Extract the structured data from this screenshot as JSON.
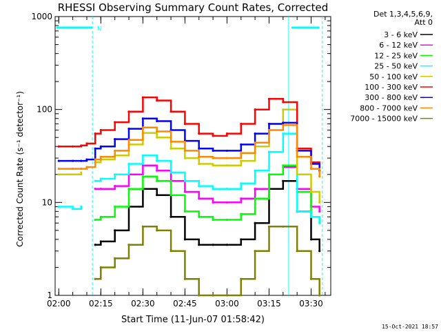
{
  "chart_data": {
    "type": "line",
    "title": "RHESSI Observing Summary Count Rates, Corrected",
    "xlabel": "Start Time (11-Jun-07 01:58:42)",
    "ylabel": "Corrected Count Rate (s⁻¹ detector⁻¹)",
    "y_scale": "log",
    "ylim": [
      1,
      1000
    ],
    "xlim": [
      "01:58:42",
      "03:37:00"
    ],
    "x_ticks": [
      "02:00",
      "02:15",
      "02:30",
      "02:45",
      "03:00",
      "03:15",
      "03:30"
    ],
    "y_ticks": [
      "1",
      "10",
      "100",
      "1000"
    ],
    "legend_header": [
      "Det 1,3,4,5,6,9,",
      "Att 0"
    ],
    "legend_placement": "right",
    "annotation": "N",
    "series": [
      {
        "name": "3 - 6 keV",
        "color": "#000000",
        "x": [
          "02:05",
          "02:08",
          "02:10",
          "02:13",
          "02:15",
          "02:20",
          "02:25",
          "02:30",
          "02:35",
          "02:40",
          "02:45",
          "02:50",
          "02:55",
          "03:00",
          "03:05",
          "03:10",
          "03:15",
          "03:20",
          "03:25",
          "03:30",
          "03:33"
        ],
        "y": [
          null,
          null,
          null,
          3.5,
          3.8,
          5,
          9,
          14,
          12,
          7,
          4,
          3.5,
          3.5,
          3.5,
          4,
          6,
          14,
          17,
          8,
          4,
          3
        ]
      },
      {
        "name": "6 - 12 keV",
        "color": "#ff00ff",
        "x": [
          "02:05",
          "02:08",
          "02:10",
          "02:13",
          "02:15",
          "02:20",
          "02:25",
          "02:30",
          "02:35",
          "02:40",
          "02:45",
          "02:50",
          "02:55",
          "03:00",
          "03:05",
          "03:10",
          "03:15",
          "03:20",
          "03:25",
          "03:30",
          "03:33"
        ],
        "y": [
          null,
          null,
          null,
          14,
          14,
          15,
          20,
          25,
          22,
          17,
          13,
          11,
          10,
          10,
          11,
          14,
          20,
          24,
          14,
          9,
          8
        ]
      },
      {
        "name": "12 - 25 keV",
        "color": "#00ff00",
        "x": [
          "02:05",
          "02:08",
          "02:10",
          "02:13",
          "02:15",
          "02:20",
          "02:25",
          "02:30",
          "02:35",
          "02:40",
          "02:45",
          "02:50",
          "02:55",
          "03:00",
          "03:05",
          "03:10",
          "03:15",
          "03:20",
          "03:25",
          "03:30",
          "03:33"
        ],
        "y": [
          null,
          null,
          null,
          6.5,
          7,
          9,
          14,
          19,
          17,
          12,
          8,
          7,
          6.5,
          6.5,
          7.5,
          11,
          20,
          25,
          13,
          7,
          6
        ]
      },
      {
        "name": "25 - 50 keV",
        "color": "#00ffff",
        "x": [
          "02:00",
          "02:05",
          "02:08",
          "02:10",
          "02:13",
          "02:15",
          "02:20",
          "02:25",
          "02:30",
          "02:35",
          "02:40",
          "02:45",
          "02:50",
          "02:55",
          "03:00",
          "03:05",
          "03:10",
          "03:15",
          "03:20",
          "03:25",
          "03:30",
          "03:33"
        ],
        "y": [
          9,
          8.5,
          9,
          null,
          17,
          18,
          20,
          26,
          32,
          28,
          21,
          17,
          15,
          14,
          14,
          16,
          22,
          35,
          55,
          8,
          7,
          6
        ]
      },
      {
        "name": "50 - 100 keV",
        "color": "#cccc00",
        "x": [
          "02:00",
          "02:05",
          "02:08",
          "02:10",
          "02:13",
          "02:15",
          "02:20",
          "02:25",
          "02:30",
          "02:35",
          "02:40",
          "02:45",
          "02:50",
          "02:55",
          "03:00",
          "03:05",
          "03:10",
          "03:15",
          "03:20",
          "03:25",
          "03:30",
          "03:33"
        ],
        "y": [
          20,
          20,
          21,
          null,
          27,
          29,
          32,
          42,
          56,
          50,
          38,
          30,
          26,
          25,
          25,
          28,
          40,
          70,
          100,
          20,
          13,
          10
        ]
      },
      {
        "name": "100 - 300 keV",
        "color": "#ff0000",
        "x": [
          "02:00",
          "02:05",
          "02:08",
          "02:10",
          "02:13",
          "02:15",
          "02:20",
          "02:25",
          "02:30",
          "02:35",
          "02:40",
          "02:45",
          "02:50",
          "02:55",
          "03:00",
          "03:05",
          "03:10",
          "03:15",
          "03:20",
          "03:25",
          "03:30",
          "03:33"
        ],
        "y": [
          40,
          40,
          41,
          43,
          55,
          60,
          73,
          95,
          135,
          125,
          95,
          70,
          55,
          52,
          55,
          70,
          100,
          130,
          120,
          38,
          27,
          22
        ]
      },
      {
        "name": "300 - 800 keV",
        "color": "#0000ff",
        "x": [
          "02:00",
          "02:05",
          "02:08",
          "02:10",
          "02:13",
          "02:15",
          "02:20",
          "02:25",
          "02:30",
          "02:35",
          "02:40",
          "02:45",
          "02:50",
          "02:55",
          "03:00",
          "03:05",
          "03:10",
          "03:15",
          "03:20",
          "03:25",
          "03:30",
          "03:33"
        ],
        "y": [
          28,
          28,
          28,
          29,
          38,
          40,
          48,
          62,
          80,
          75,
          60,
          46,
          38,
          36,
          36,
          42,
          55,
          70,
          72,
          36,
          26,
          22
        ]
      },
      {
        "name": "800 - 7000 keV",
        "color": "#ff8800",
        "x": [
          "02:00",
          "02:05",
          "02:08",
          "02:10",
          "02:13",
          "02:15",
          "02:20",
          "02:25",
          "02:30",
          "02:35",
          "02:40",
          "02:45",
          "02:50",
          "02:55",
          "03:00",
          "03:05",
          "03:10",
          "03:15",
          "03:20",
          "03:25",
          "03:30",
          "03:33"
        ],
        "y": [
          23,
          23,
          23,
          24,
          29,
          31,
          36,
          47,
          64,
          58,
          45,
          36,
          31,
          30,
          30,
          34,
          44,
          60,
          68,
          31,
          23,
          19
        ]
      },
      {
        "name": "7000 - 15000 keV",
        "color": "#808000",
        "x": [
          "02:05",
          "02:08",
          "02:10",
          "02:13",
          "02:15",
          "02:20",
          "02:25",
          "02:30",
          "02:35",
          "02:40",
          "02:45",
          "02:50",
          "02:55",
          "03:00",
          "03:05",
          "03:10",
          "03:15",
          "03:20",
          "03:25",
          "03:30",
          "03:33"
        ],
        "y": [
          null,
          null,
          null,
          1.5,
          2,
          2.5,
          3.5,
          5.5,
          5,
          3,
          1.5,
          1,
          1,
          1,
          1.5,
          3,
          5.5,
          5.5,
          3,
          1.5,
          1
        ]
      }
    ]
  },
  "footer": "15-Oct-2021 18:57"
}
